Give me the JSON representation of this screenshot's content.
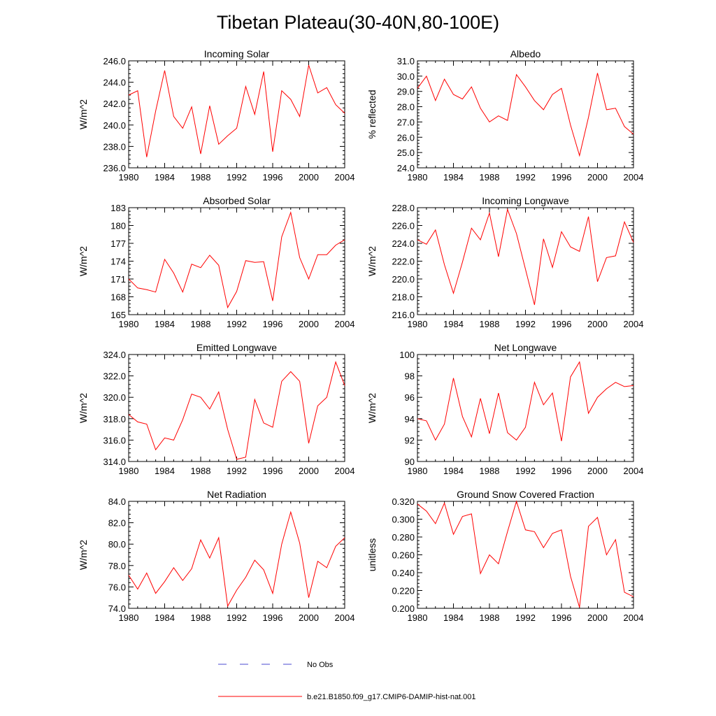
{
  "figure": {
    "title": "Tibetan Plateau(30-40N,80-100E)",
    "legend": [
      {
        "label": "No Obs",
        "color": "#4a4ad0",
        "style": "dashed"
      },
      {
        "label": "b.e21.B1850.f09_g17.CMIP6-DAMIP-hist-nat.001",
        "color": "#ff0000",
        "style": "solid"
      }
    ]
  },
  "chart_data": [
    {
      "type": "line",
      "title": "Incoming Solar",
      "ylabel": "W/m^2",
      "xlim": [
        1980,
        2004
      ],
      "ylim": [
        236,
        246
      ],
      "xticks": [
        1980,
        1984,
        1988,
        1992,
        1996,
        2000,
        2004
      ],
      "yticks": [
        236,
        238,
        240,
        242,
        244,
        246
      ],
      "yticklabels": [
        "236.0",
        "238.0",
        "240.0",
        "242.0",
        "244.0",
        "246.0"
      ],
      "color": "#ff0000",
      "x": [
        1980,
        1981,
        1982,
        1983,
        1984,
        1985,
        1986,
        1987,
        1988,
        1989,
        1990,
        1991,
        1992,
        1993,
        1994,
        1995,
        1996,
        1997,
        1998,
        1999,
        2000,
        2001,
        2002,
        2003,
        2004
      ],
      "y": [
        242.8,
        243.2,
        237.0,
        241.3,
        245.1,
        240.8,
        239.7,
        241.7,
        237.3,
        241.8,
        238.2,
        239.0,
        239.7,
        243.6,
        241.0,
        245.0,
        237.5,
        243.2,
        242.4,
        240.8,
        245.6,
        243.0,
        243.5,
        241.9,
        241.1
      ]
    },
    {
      "type": "line",
      "title": "Albedo",
      "ylabel": "% reflected",
      "xlim": [
        1980,
        2004
      ],
      "ylim": [
        24,
        31
      ],
      "xticks": [
        1980,
        1984,
        1988,
        1992,
        1996,
        2000,
        2004
      ],
      "yticks": [
        24,
        25,
        26,
        27,
        28,
        29,
        30,
        31
      ],
      "yticklabels": [
        "24.0",
        "25.0",
        "26.0",
        "27.0",
        "28.0",
        "29.0",
        "30.0",
        "31.0"
      ],
      "color": "#ff0000",
      "x": [
        1980,
        1981,
        1982,
        1983,
        1984,
        1985,
        1986,
        1987,
        1988,
        1989,
        1990,
        1991,
        1992,
        1993,
        1994,
        1995,
        1996,
        1997,
        1998,
        1999,
        2000,
        2001,
        2002,
        2003,
        2004
      ],
      "y": [
        29.2,
        30.0,
        28.4,
        29.8,
        28.8,
        28.5,
        29.3,
        27.9,
        27.0,
        27.4,
        27.1,
        30.1,
        29.3,
        28.4,
        27.8,
        28.8,
        29.2,
        26.8,
        24.8,
        27.3,
        30.2,
        27.8,
        27.9,
        26.7,
        26.2
      ]
    },
    {
      "type": "line",
      "title": "Absorbed Solar",
      "ylabel": "W/m^2",
      "xlim": [
        1980,
        2004
      ],
      "ylim": [
        165,
        183
      ],
      "xticks": [
        1980,
        1984,
        1988,
        1992,
        1996,
        2000,
        2004
      ],
      "yticks": [
        165,
        168,
        171,
        174,
        177,
        180,
        183
      ],
      "yticklabels": [
        "165",
        "168",
        "171",
        "174",
        "177",
        "180",
        "183"
      ],
      "color": "#ff0000",
      "x": [
        1980,
        1981,
        1982,
        1983,
        1984,
        1985,
        1986,
        1987,
        1988,
        1989,
        1990,
        1991,
        1992,
        1993,
        1994,
        1995,
        1996,
        1997,
        1998,
        1999,
        2000,
        2001,
        2002,
        2003,
        2004
      ],
      "y": [
        171.0,
        169.5,
        169.2,
        168.8,
        174.3,
        172.0,
        168.8,
        173.5,
        172.9,
        175.0,
        173.3,
        166.2,
        168.9,
        174.1,
        173.8,
        173.9,
        167.3,
        178.1,
        182.2,
        174.6,
        171.0,
        175.1,
        175.1,
        176.7,
        177.6
      ]
    },
    {
      "type": "line",
      "title": "Incoming Longwave",
      "ylabel": "W/m^2",
      "xlim": [
        1980,
        2004
      ],
      "ylim": [
        216,
        228
      ],
      "xticks": [
        1980,
        1984,
        1988,
        1992,
        1996,
        2000,
        2004
      ],
      "yticks": [
        216,
        218,
        220,
        222,
        224,
        226,
        228
      ],
      "yticklabels": [
        "216.0",
        "218.0",
        "220.0",
        "222.0",
        "224.0",
        "226.0",
        "228.0"
      ],
      "color": "#ff0000",
      "x": [
        1980,
        1981,
        1982,
        1983,
        1984,
        1985,
        1986,
        1987,
        1988,
        1989,
        1990,
        1991,
        1992,
        1993,
        1994,
        1995,
        1996,
        1997,
        1998,
        1999,
        2000,
        2001,
        2002,
        2003,
        2004
      ],
      "y": [
        224.4,
        223.9,
        225.5,
        221.6,
        218.4,
        221.9,
        225.7,
        224.4,
        227.4,
        222.5,
        227.8,
        225.1,
        221.1,
        217.1,
        224.5,
        221.3,
        225.3,
        223.6,
        223.1,
        227.0,
        219.7,
        222.4,
        222.6,
        226.4,
        224.1
      ]
    },
    {
      "type": "line",
      "title": "Emitted Longwave",
      "ylabel": "W/m^2",
      "xlim": [
        1980,
        2004
      ],
      "ylim": [
        314,
        324
      ],
      "xticks": [
        1980,
        1984,
        1988,
        1992,
        1996,
        2000,
        2004
      ],
      "yticks": [
        314,
        316,
        318,
        320,
        322,
        324
      ],
      "yticklabels": [
        "314.0",
        "316.0",
        "318.0",
        "320.0",
        "322.0",
        "324.0"
      ],
      "color": "#ff0000",
      "x": [
        1980,
        1981,
        1982,
        1983,
        1984,
        1985,
        1986,
        1987,
        1988,
        1989,
        1990,
        1991,
        1992,
        1993,
        1994,
        1995,
        1996,
        1997,
        1998,
        1999,
        2000,
        2001,
        2002,
        2003,
        2004
      ],
      "y": [
        318.4,
        317.7,
        317.5,
        315.1,
        316.2,
        316.0,
        317.9,
        320.3,
        320.0,
        318.9,
        320.5,
        317.0,
        314.2,
        314.4,
        319.8,
        317.6,
        317.2,
        321.5,
        322.4,
        321.5,
        315.7,
        319.2,
        320.0,
        323.3,
        321.1
      ]
    },
    {
      "type": "line",
      "title": "Net Longwave",
      "ylabel": "W/m^2",
      "xlim": [
        1980,
        2004
      ],
      "ylim": [
        90,
        100
      ],
      "xticks": [
        1980,
        1984,
        1988,
        1992,
        1996,
        2000,
        2004
      ],
      "yticks": [
        90,
        92,
        94,
        96,
        98,
        100
      ],
      "yticklabels": [
        "90",
        "92",
        "94",
        "96",
        "98",
        "100"
      ],
      "color": "#ff0000",
      "x": [
        1980,
        1981,
        1982,
        1983,
        1984,
        1985,
        1986,
        1987,
        1988,
        1989,
        1990,
        1991,
        1992,
        1993,
        1994,
        1995,
        1996,
        1997,
        1998,
        1999,
        2000,
        2001,
        2002,
        2003,
        2004
      ],
      "y": [
        94.0,
        93.8,
        92.0,
        93.5,
        97.8,
        94.2,
        92.3,
        95.9,
        92.6,
        96.4,
        92.7,
        92.0,
        93.2,
        97.4,
        95.3,
        96.4,
        91.9,
        97.9,
        99.3,
        94.5,
        96.0,
        96.8,
        97.4,
        97.0,
        97.1
      ]
    },
    {
      "type": "line",
      "title": "Net Radiation",
      "ylabel": "W/m^2",
      "xlim": [
        1980,
        2004
      ],
      "ylim": [
        74,
        84
      ],
      "xticks": [
        1980,
        1984,
        1988,
        1992,
        1996,
        2000,
        2004
      ],
      "yticks": [
        74,
        76,
        78,
        80,
        82,
        84
      ],
      "yticklabels": [
        "74.0",
        "76.0",
        "78.0",
        "80.0",
        "82.0",
        "84.0"
      ],
      "color": "#ff0000",
      "x": [
        1980,
        1981,
        1982,
        1983,
        1984,
        1985,
        1986,
        1987,
        1988,
        1989,
        1990,
        1991,
        1992,
        1993,
        1994,
        1995,
        1996,
        1997,
        1998,
        1999,
        2000,
        2001,
        2002,
        2003,
        2004
      ],
      "y": [
        77.1,
        75.8,
        77.3,
        75.4,
        76.5,
        77.8,
        76.6,
        77.7,
        80.4,
        78.7,
        80.6,
        74.2,
        75.7,
        76.9,
        78.5,
        77.6,
        75.4,
        80.0,
        83.0,
        80.1,
        75.0,
        78.4,
        77.8,
        79.8,
        80.6
      ]
    },
    {
      "type": "line",
      "title": "Ground Snow Covered Fraction",
      "ylabel": "unitless",
      "xlim": [
        1980,
        2004
      ],
      "ylim": [
        0.2,
        0.32
      ],
      "xticks": [
        1980,
        1984,
        1988,
        1992,
        1996,
        2000,
        2004
      ],
      "yticks": [
        0.2,
        0.22,
        0.24,
        0.26,
        0.28,
        0.3,
        0.32
      ],
      "yticklabels": [
        "0.200",
        "0.220",
        "0.240",
        "0.260",
        "0.280",
        "0.300",
        "0.320"
      ],
      "color": "#ff0000",
      "x": [
        1980,
        1981,
        1982,
        1983,
        1984,
        1985,
        1986,
        1987,
        1988,
        1989,
        1990,
        1991,
        1992,
        1993,
        1994,
        1995,
        1996,
        1997,
        1998,
        1999,
        2000,
        2001,
        2002,
        2003,
        2004
      ],
      "y": [
        0.317,
        0.309,
        0.295,
        0.318,
        0.283,
        0.303,
        0.306,
        0.239,
        0.26,
        0.25,
        0.286,
        0.32,
        0.288,
        0.286,
        0.268,
        0.284,
        0.288,
        0.236,
        0.201,
        0.292,
        0.302,
        0.26,
        0.277,
        0.218,
        0.213
      ]
    }
  ]
}
